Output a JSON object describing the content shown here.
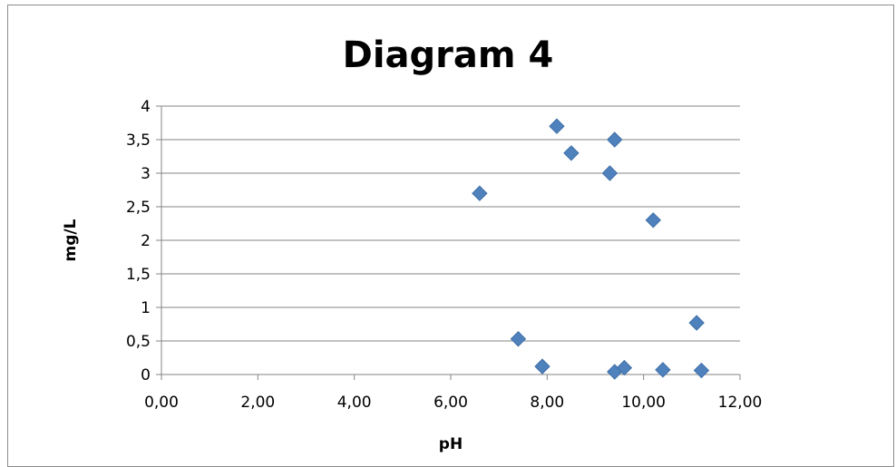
{
  "chart_data": {
    "type": "scatter",
    "title": "Diagram 4",
    "xlabel": "pH",
    "ylabel": "mg/L",
    "xlim": [
      0,
      12
    ],
    "ylim": [
      0,
      4
    ],
    "x_ticks": [
      "0,00",
      "2,00",
      "4,00",
      "6,00",
      "8,00",
      "10,00",
      "12,00"
    ],
    "y_ticks": [
      "0",
      "0,5",
      "1",
      "1,5",
      "2",
      "2,5",
      "3",
      "3,5",
      "4"
    ],
    "grid": "horizontal",
    "legend": "none",
    "marker": "diamond",
    "color": "#4f81bd",
    "points": [
      {
        "x": 6.6,
        "y": 2.7
      },
      {
        "x": 7.4,
        "y": 0.53
      },
      {
        "x": 7.9,
        "y": 0.12
      },
      {
        "x": 8.2,
        "y": 3.7
      },
      {
        "x": 8.5,
        "y": 3.3
      },
      {
        "x": 9.3,
        "y": 3.0
      },
      {
        "x": 9.4,
        "y": 3.5
      },
      {
        "x": 9.4,
        "y": 0.04
      },
      {
        "x": 9.6,
        "y": 0.1
      },
      {
        "x": 10.2,
        "y": 2.3
      },
      {
        "x": 10.4,
        "y": 0.07
      },
      {
        "x": 11.1,
        "y": 0.77
      },
      {
        "x": 11.2,
        "y": 0.06
      }
    ]
  }
}
